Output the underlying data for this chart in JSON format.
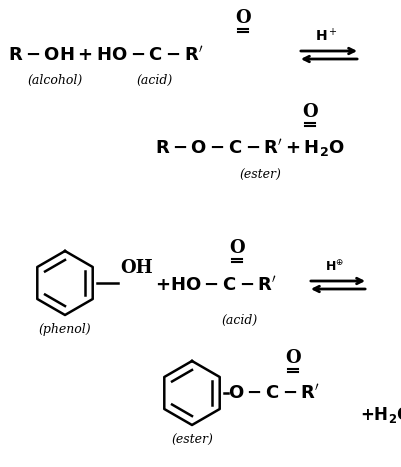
{
  "bg_color": "#ffffff",
  "text_color": "#000000",
  "figsize": [
    4.01,
    4.67
  ],
  "dpi": 100,
  "xlim": [
    0,
    401
  ],
  "ylim": [
    0,
    467
  ]
}
